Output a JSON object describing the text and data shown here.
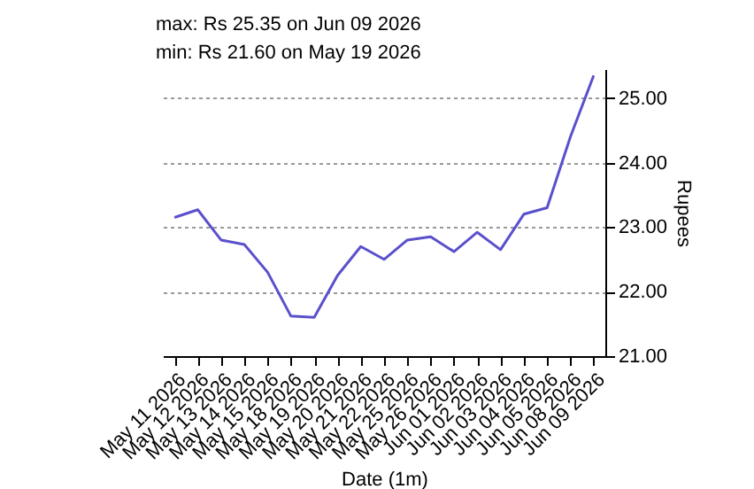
{
  "chart_data": {
    "type": "line",
    "annotations": [
      "max: Rs 25.35 on Jun 09 2026",
      "min: Rs 21.60 on May 19 2026"
    ],
    "xlabel": "Date (1m)",
    "ylabel": "Rupees",
    "categories": [
      "May 11 2026",
      "May 12 2026",
      "May 13 2026",
      "May 14 2026",
      "May 15 2026",
      "May 18 2026",
      "May 19 2026",
      "May 20 2026",
      "May 21 2026",
      "May 22 2026",
      "May 25 2026",
      "May 26 2026",
      "Jun 01 2026",
      "Jun 02 2026",
      "Jun 03 2026",
      "Jun 04 2026",
      "Jun 05 2026",
      "Jun 08 2026",
      "Jun 09 2026"
    ],
    "series": [
      {
        "color": "#5a50cc",
        "values": [
          23.15,
          23.27,
          22.8,
          22.73,
          22.3,
          21.62,
          21.6,
          22.25,
          22.7,
          22.5,
          22.8,
          22.85,
          22.62,
          22.92,
          22.65,
          23.2,
          23.3,
          24.4,
          25.35
        ]
      }
    ],
    "ylim": [
      21,
      25.45
    ],
    "yticks": [
      {
        "value": 21,
        "label": "21.00"
      },
      {
        "value": 22,
        "label": "22.00"
      },
      {
        "value": 23,
        "label": "23.00"
      },
      {
        "value": 24,
        "label": "24.00"
      },
      {
        "value": 25,
        "label": "25.00"
      }
    ],
    "grid": "y",
    "marker": "none",
    "line_style": "solid",
    "legend": false
  }
}
